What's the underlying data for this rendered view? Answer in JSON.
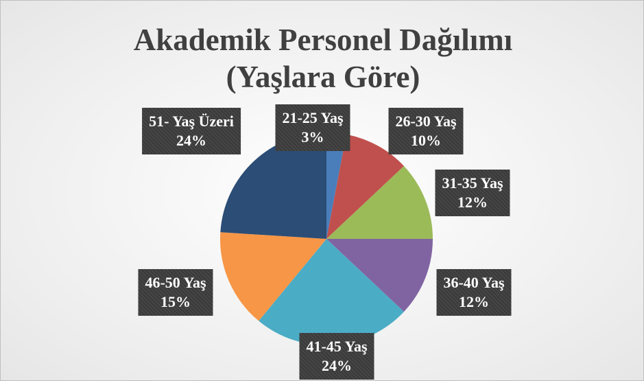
{
  "chart_data": {
    "type": "pie",
    "title": "Akademik Personel Dağılımı (Yaşlara Göre)",
    "categories": [
      "21-25 Yaş",
      "26-30 Yaş",
      "31-35 Yaş",
      "36-40 Yaş",
      "41-45 Yaş",
      "46-50 Yaş",
      "51- Yaş Üzeri"
    ],
    "values": [
      3,
      10,
      12,
      12,
      24,
      15,
      24
    ],
    "value_labels": [
      "3%",
      "10%",
      "12%",
      "12%",
      "24%",
      "15%",
      "24%"
    ],
    "colors": [
      "#4a7ebb",
      "#c0504d",
      "#9bbb59",
      "#8064a2",
      "#4bacc6",
      "#f79646",
      "#2c4d75"
    ]
  }
}
